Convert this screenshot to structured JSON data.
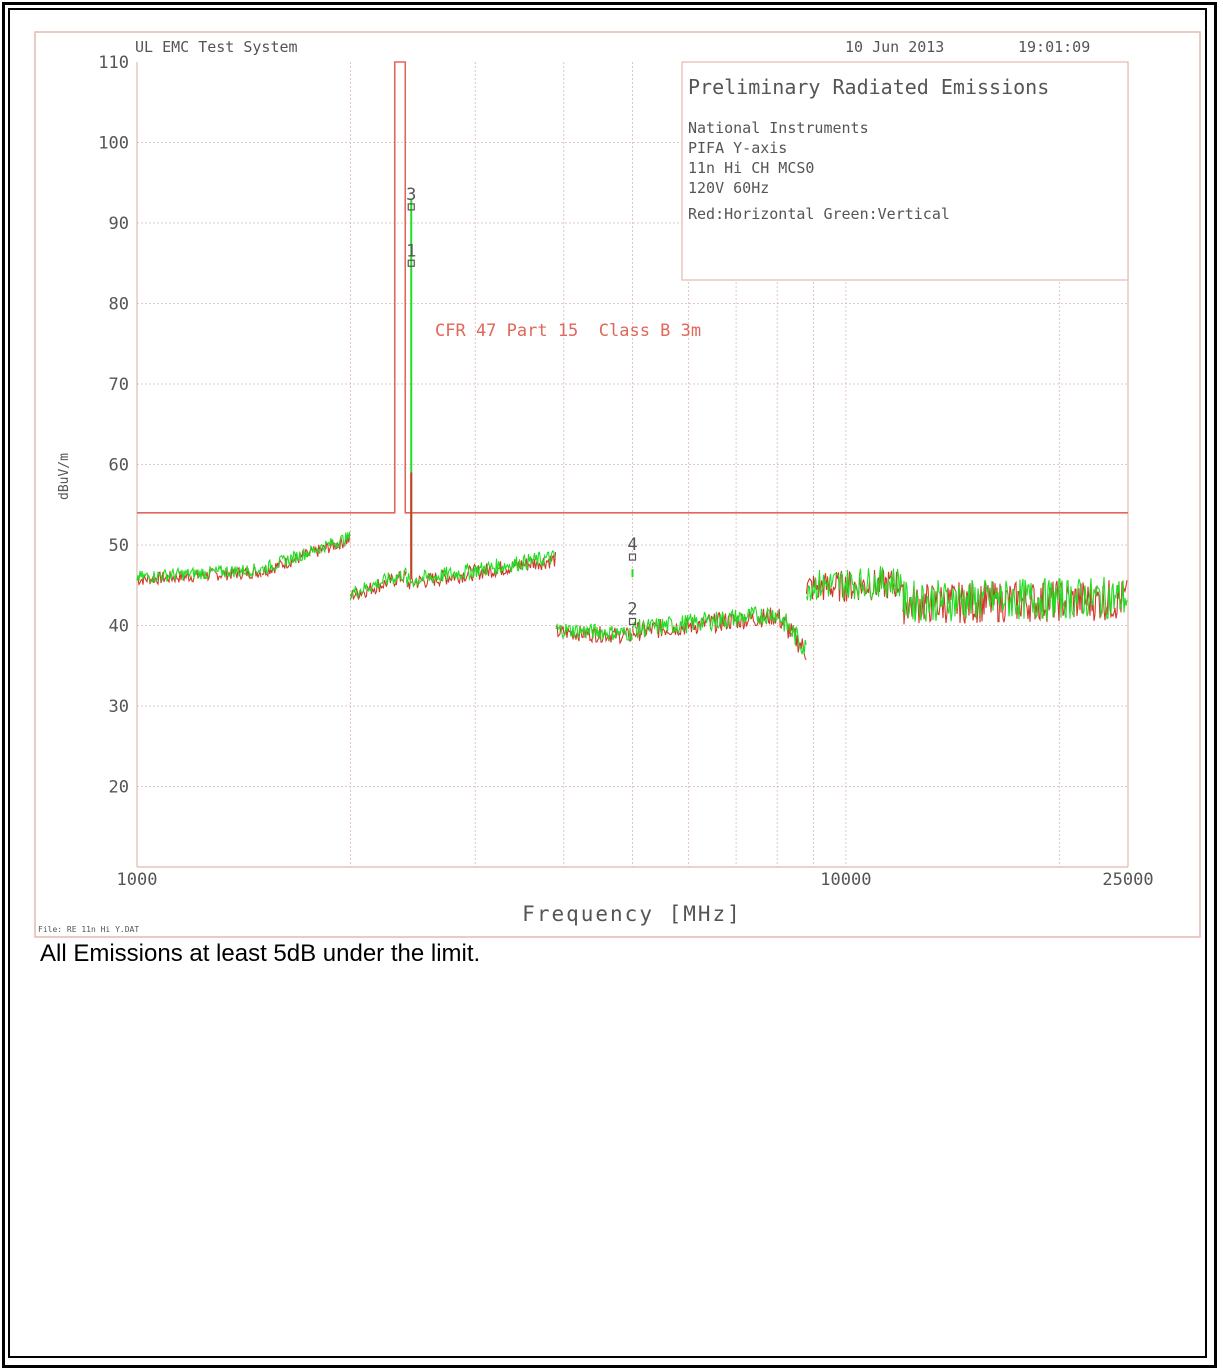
{
  "colors": {
    "limit": "#e0675a",
    "horizontal": "#d03a2c",
    "vertical": "#22dd22",
    "grid": "#d9b9b4",
    "frame": "#e3b9ae",
    "text": "#555555"
  },
  "header": {
    "system": "UL EMC Test System",
    "date": "10 Jun 2013",
    "time": "19:01:09"
  },
  "info_box": {
    "title": "Preliminary Radiated Emissions",
    "lines": [
      "National Instruments",
      "PIFA Y-axis",
      "11n Hi CH MCS0",
      "120V 60Hz",
      "Red:Horizontal Green:Vertical"
    ]
  },
  "file_label": "File: RE 11n Hi Y.DAT",
  "note": "All Emissions at least 5dB under the limit.",
  "chart_data": {
    "type": "line",
    "title": "Preliminary Radiated Emissions",
    "xlabel": "Frequency [MHz]",
    "ylabel": "dBuV/m",
    "x_scale": "log",
    "xlim": [
      1000,
      25000
    ],
    "ylim": [
      10,
      110
    ],
    "y_ticks": [
      110,
      100,
      90,
      80,
      70,
      60,
      50,
      40,
      30,
      20
    ],
    "x_tick_labels": [
      {
        "value": 1000,
        "label": "1000"
      },
      {
        "value": 10000,
        "label": "10000"
      },
      {
        "value": 25000,
        "label": "25000"
      }
    ],
    "x_gridlines": [
      2000,
      3000,
      4000,
      5000,
      6000,
      7000,
      8000,
      9000,
      10000,
      20000
    ],
    "grid": true,
    "limit_line": {
      "label": "CFR 47 Part 15  Class B 3m",
      "notch_start": 2310,
      "notch_end": 2390,
      "level_dbuv": 54,
      "notch_level": 110
    },
    "noise_segments": [
      {
        "x0": 1000,
        "x1": 1500,
        "y0": 46,
        "y1": 47,
        "amp": 0.8
      },
      {
        "x0": 1500,
        "x1": 2000,
        "y0": 47,
        "y1": 51,
        "amp": 0.8
      },
      {
        "x0": 2000,
        "x1": 2400,
        "y0": 44,
        "y1": 46.5,
        "amp": 0.9
      },
      {
        "x0": 2400,
        "x1": 3900,
        "y0": 45.5,
        "y1": 48.5,
        "amp": 1.0
      },
      {
        "x0": 3900,
        "x1": 5000,
        "y0": 39.5,
        "y1": 39,
        "amp": 1.0
      },
      {
        "x0": 5000,
        "x1": 8000,
        "y0": 39.5,
        "y1": 41.5,
        "amp": 1.2
      },
      {
        "x0": 8000,
        "x1": 8800,
        "y0": 41.5,
        "y1": 37,
        "amp": 1.4
      },
      {
        "x0": 8800,
        "x1": 12000,
        "y0": 45,
        "y1": 45.5,
        "amp": 2.0
      },
      {
        "x0": 12000,
        "x1": 25000,
        "y0": 43,
        "y1": 43.5,
        "amp": 2.6
      }
    ],
    "peaks": [
      {
        "x": 2437,
        "y": 93,
        "series": "vertical"
      },
      {
        "x": 2437,
        "y": 59,
        "series": "horizontal"
      },
      {
        "x": 5000,
        "y": 47,
        "series": "vertical"
      }
    ],
    "markers": [
      {
        "label": "1",
        "x": 2437,
        "y": 85
      },
      {
        "label": "2",
        "x": 5000,
        "y": 40.5
      },
      {
        "label": "3",
        "x": 2437,
        "y": 92
      },
      {
        "label": "4",
        "x": 5000,
        "y": 48.5
      }
    ],
    "series": [
      {
        "name": "Red:Horizontal",
        "color": "#d03a2c"
      },
      {
        "name": "Green:Vertical",
        "color": "#22dd22"
      }
    ]
  }
}
